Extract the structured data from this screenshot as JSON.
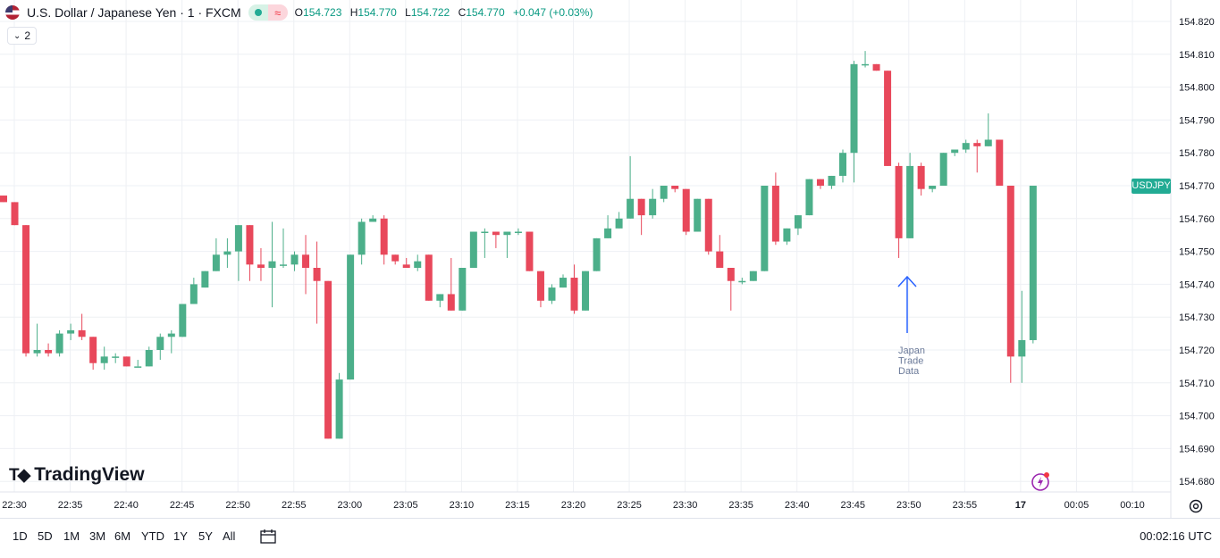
{
  "header": {
    "title": "U.S. Dollar / Japanese Yen · 1 · FXCM",
    "o_label": "O",
    "o_value": "154.723",
    "h_label": "H",
    "h_value": "154.770",
    "l_label": "L",
    "l_value": "154.722",
    "c_label": "C",
    "c_value": "154.770",
    "change": "+0.047 (+0.03%)",
    "indicator_count": "2"
  },
  "symbol_tag": "USDJPY",
  "logo_text": "TradingView",
  "annotation": {
    "lines": [
      "Japan",
      "Trade",
      "Data"
    ],
    "color": "#2962ff"
  },
  "bottom_bar": {
    "ranges": [
      "1D",
      "5D",
      "1M",
      "3M",
      "6M",
      "YTD",
      "1Y",
      "5Y",
      "All"
    ],
    "time": "00:02:16 UTC"
  },
  "colors": {
    "up": "#4caf8a",
    "down": "#e8485b",
    "grid": "#eef0f4",
    "text": "#131722"
  },
  "chart_data": {
    "type": "candlestick",
    "ylim": [
      154.675,
      154.825
    ],
    "y_ticks": [
      "154.680",
      "154.690",
      "154.700",
      "154.710",
      "154.720",
      "154.730",
      "154.740",
      "154.750",
      "154.760",
      "154.770",
      "154.780",
      "154.790",
      "154.800",
      "154.810",
      "154.820"
    ],
    "x_ticks": [
      "22:30",
      "22:35",
      "22:40",
      "22:45",
      "22:50",
      "22:55",
      "23:00",
      "23:05",
      "23:10",
      "23:15",
      "23:20",
      "23:25",
      "23:30",
      "23:35",
      "23:40",
      "23:45",
      "23:50",
      "23:55",
      "17",
      "00:05",
      "00:10"
    ],
    "candles": [
      {
        "o": 154.767,
        "h": 154.767,
        "l": 154.765,
        "c": 154.765
      },
      {
        "o": 154.765,
        "h": 154.765,
        "l": 154.758,
        "c": 154.758
      },
      {
        "o": 154.758,
        "h": 154.758,
        "l": 154.718,
        "c": 154.719
      },
      {
        "o": 154.719,
        "h": 154.728,
        "l": 154.718,
        "c": 154.72
      },
      {
        "o": 154.72,
        "h": 154.722,
        "l": 154.718,
        "c": 154.719
      },
      {
        "o": 154.719,
        "h": 154.726,
        "l": 154.718,
        "c": 154.725
      },
      {
        "o": 154.725,
        "h": 154.728,
        "l": 154.723,
        "c": 154.726
      },
      {
        "o": 154.726,
        "h": 154.731,
        "l": 154.723,
        "c": 154.724
      },
      {
        "o": 154.724,
        "h": 154.724,
        "l": 154.714,
        "c": 154.716
      },
      {
        "o": 154.716,
        "h": 154.721,
        "l": 154.714,
        "c": 154.718
      },
      {
        "o": 154.718,
        "h": 154.719,
        "l": 154.716,
        "c": 154.718
      },
      {
        "o": 154.718,
        "h": 154.718,
        "l": 154.715,
        "c": 154.715
      },
      {
        "o": 154.715,
        "h": 154.717,
        "l": 154.715,
        "c": 154.715
      },
      {
        "o": 154.715,
        "h": 154.721,
        "l": 154.715,
        "c": 154.72
      },
      {
        "o": 154.72,
        "h": 154.725,
        "l": 154.717,
        "c": 154.724
      },
      {
        "o": 154.724,
        "h": 154.726,
        "l": 154.719,
        "c": 154.725
      },
      {
        "o": 154.724,
        "h": 154.734,
        "l": 154.724,
        "c": 154.734
      },
      {
        "o": 154.734,
        "h": 154.742,
        "l": 154.734,
        "c": 154.74
      },
      {
        "o": 154.739,
        "h": 154.744,
        "l": 154.739,
        "c": 154.744
      },
      {
        "o": 154.744,
        "h": 154.754,
        "l": 154.744,
        "c": 154.749
      },
      {
        "o": 154.749,
        "h": 154.754,
        "l": 154.745,
        "c": 154.75
      },
      {
        "o": 154.75,
        "h": 154.758,
        "l": 154.741,
        "c": 154.758
      },
      {
        "o": 154.758,
        "h": 154.758,
        "l": 154.741,
        "c": 154.746
      },
      {
        "o": 154.746,
        "h": 154.751,
        "l": 154.741,
        "c": 154.745
      },
      {
        "o": 154.745,
        "h": 154.759,
        "l": 154.733,
        "c": 154.747
      },
      {
        "o": 154.746,
        "h": 154.757,
        "l": 154.745,
        "c": 154.746
      },
      {
        "o": 154.746,
        "h": 154.75,
        "l": 154.744,
        "c": 154.749
      },
      {
        "o": 154.749,
        "h": 154.755,
        "l": 154.737,
        "c": 154.745
      },
      {
        "o": 154.745,
        "h": 154.753,
        "l": 154.728,
        "c": 154.741
      },
      {
        "o": 154.741,
        "h": 154.741,
        "l": 154.693,
        "c": 154.693
      },
      {
        "o": 154.693,
        "h": 154.713,
        "l": 154.693,
        "c": 154.711
      },
      {
        "o": 154.711,
        "h": 154.749,
        "l": 154.711,
        "c": 154.749
      },
      {
        "o": 154.749,
        "h": 154.76,
        "l": 154.746,
        "c": 154.759
      },
      {
        "o": 154.759,
        "h": 154.761,
        "l": 154.759,
        "c": 154.76
      },
      {
        "o": 154.76,
        "h": 154.761,
        "l": 154.746,
        "c": 154.749
      },
      {
        "o": 154.749,
        "h": 154.749,
        "l": 154.746,
        "c": 154.747
      },
      {
        "o": 154.746,
        "h": 154.748,
        "l": 154.745,
        "c": 154.745
      },
      {
        "o": 154.745,
        "h": 154.749,
        "l": 154.744,
        "c": 154.747
      },
      {
        "o": 154.749,
        "h": 154.749,
        "l": 154.735,
        "c": 154.735
      },
      {
        "o": 154.735,
        "h": 154.737,
        "l": 154.733,
        "c": 154.737
      },
      {
        "o": 154.737,
        "h": 154.748,
        "l": 154.732,
        "c": 154.732
      },
      {
        "o": 154.732,
        "h": 154.745,
        "l": 154.732,
        "c": 154.745
      },
      {
        "o": 154.745,
        "h": 154.756,
        "l": 154.745,
        "c": 154.756
      },
      {
        "o": 154.756,
        "h": 154.757,
        "l": 154.748,
        "c": 154.756
      },
      {
        "o": 154.756,
        "h": 154.756,
        "l": 154.751,
        "c": 154.755
      },
      {
        "o": 154.755,
        "h": 154.756,
        "l": 154.748,
        "c": 154.756
      },
      {
        "o": 154.756,
        "h": 154.757,
        "l": 154.755,
        "c": 154.756
      },
      {
        "o": 154.756,
        "h": 154.756,
        "l": 154.744,
        "c": 154.744
      },
      {
        "o": 154.744,
        "h": 154.744,
        "l": 154.733,
        "c": 154.735
      },
      {
        "o": 154.735,
        "h": 154.74,
        "l": 154.734,
        "c": 154.739
      },
      {
        "o": 154.739,
        "h": 154.743,
        "l": 154.739,
        "c": 154.742
      },
      {
        "o": 154.742,
        "h": 154.746,
        "l": 154.731,
        "c": 154.732
      },
      {
        "o": 154.732,
        "h": 154.744,
        "l": 154.732,
        "c": 154.744
      },
      {
        "o": 154.744,
        "h": 154.754,
        "l": 154.744,
        "c": 154.754
      },
      {
        "o": 154.754,
        "h": 154.761,
        "l": 154.754,
        "c": 154.757
      },
      {
        "o": 154.757,
        "h": 154.762,
        "l": 154.757,
        "c": 154.76
      },
      {
        "o": 154.76,
        "h": 154.779,
        "l": 154.76,
        "c": 154.766
      },
      {
        "o": 154.766,
        "h": 154.766,
        "l": 154.755,
        "c": 154.761
      },
      {
        "o": 154.761,
        "h": 154.769,
        "l": 154.76,
        "c": 154.766
      },
      {
        "o": 154.766,
        "h": 154.77,
        "l": 154.765,
        "c": 154.77
      },
      {
        "o": 154.77,
        "h": 154.77,
        "l": 154.768,
        "c": 154.769
      },
      {
        "o": 154.769,
        "h": 154.769,
        "l": 154.755,
        "c": 154.756
      },
      {
        "o": 154.756,
        "h": 154.766,
        "l": 154.756,
        "c": 154.766
      },
      {
        "o": 154.766,
        "h": 154.766,
        "l": 154.749,
        "c": 154.75
      },
      {
        "o": 154.75,
        "h": 154.755,
        "l": 154.745,
        "c": 154.745
      },
      {
        "o": 154.745,
        "h": 154.745,
        "l": 154.732,
        "c": 154.741
      },
      {
        "o": 154.741,
        "h": 154.742,
        "l": 154.74,
        "c": 154.741
      },
      {
        "o": 154.741,
        "h": 154.744,
        "l": 154.741,
        "c": 154.744
      },
      {
        "o": 154.744,
        "h": 154.77,
        "l": 154.744,
        "c": 154.77
      },
      {
        "o": 154.77,
        "h": 154.774,
        "l": 154.752,
        "c": 154.753
      },
      {
        "o": 154.753,
        "h": 154.757,
        "l": 154.752,
        "c": 154.757
      },
      {
        "o": 154.757,
        "h": 154.761,
        "l": 154.755,
        "c": 154.761
      },
      {
        "o": 154.761,
        "h": 154.772,
        "l": 154.761,
        "c": 154.772
      },
      {
        "o": 154.772,
        "h": 154.772,
        "l": 154.769,
        "c": 154.77
      },
      {
        "o": 154.77,
        "h": 154.773,
        "l": 154.769,
        "c": 154.773
      },
      {
        "o": 154.773,
        "h": 154.781,
        "l": 154.771,
        "c": 154.78
      },
      {
        "o": 154.78,
        "h": 154.808,
        "l": 154.771,
        "c": 154.807
      },
      {
        "o": 154.807,
        "h": 154.811,
        "l": 154.806,
        "c": 154.807
      },
      {
        "o": 154.807,
        "h": 154.807,
        "l": 154.805,
        "c": 154.805
      },
      {
        "o": 154.805,
        "h": 154.805,
        "l": 154.776,
        "c": 154.776
      },
      {
        "o": 154.776,
        "h": 154.777,
        "l": 154.748,
        "c": 154.754
      },
      {
        "o": 154.754,
        "h": 154.78,
        "l": 154.754,
        "c": 154.776
      },
      {
        "o": 154.776,
        "h": 154.777,
        "l": 154.767,
        "c": 154.769
      },
      {
        "o": 154.769,
        "h": 154.77,
        "l": 154.768,
        "c": 154.77
      },
      {
        "o": 154.77,
        "h": 154.78,
        "l": 154.77,
        "c": 154.78
      },
      {
        "o": 154.78,
        "h": 154.781,
        "l": 154.779,
        "c": 154.781
      },
      {
        "o": 154.781,
        "h": 154.784,
        "l": 154.78,
        "c": 154.783
      },
      {
        "o": 154.783,
        "h": 154.784,
        "l": 154.774,
        "c": 154.782
      },
      {
        "o": 154.782,
        "h": 154.792,
        "l": 154.782,
        "c": 154.784
      },
      {
        "o": 154.784,
        "h": 154.784,
        "l": 154.77,
        "c": 154.77
      },
      {
        "o": 154.77,
        "h": 154.77,
        "l": 154.71,
        "c": 154.718
      },
      {
        "o": 154.718,
        "h": 154.738,
        "l": 154.71,
        "c": 154.723
      },
      {
        "o": 154.723,
        "h": 154.77,
        "l": 154.722,
        "c": 154.77
      }
    ]
  }
}
